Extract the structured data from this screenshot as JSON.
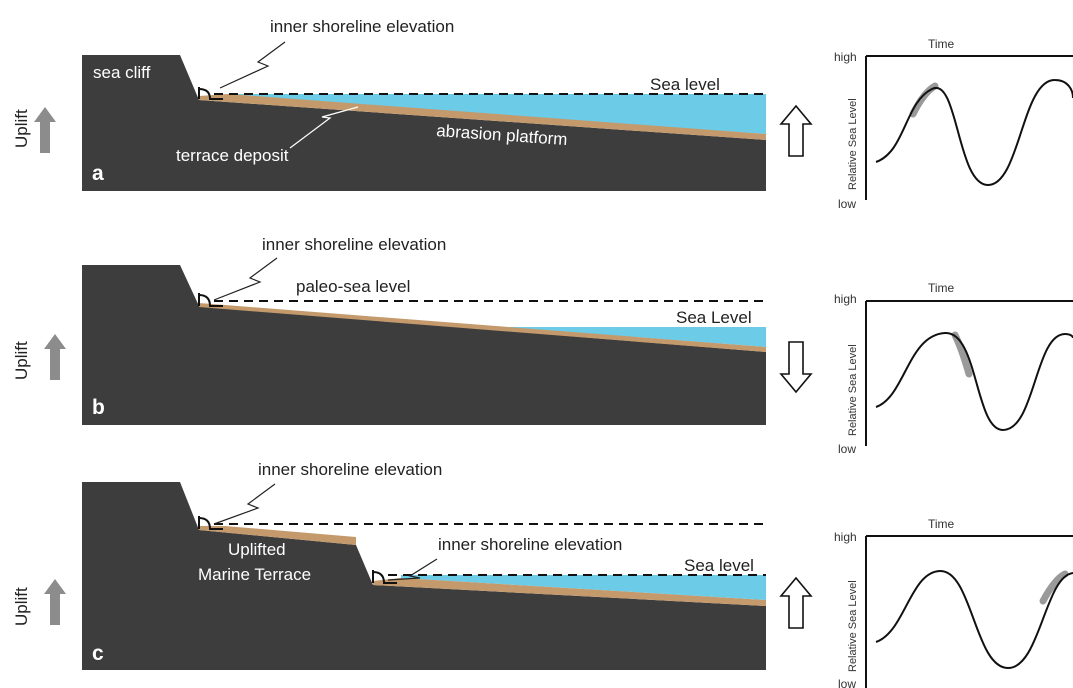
{
  "colors": {
    "rock": "#3d3d3d",
    "water": "#6ccbe6",
    "sediment": "#c49a6c",
    "arrow_gray": "#8c8c8c",
    "highlight": "#9a9a9a",
    "text": "#222222"
  },
  "panels": [
    {
      "letter": "a",
      "uplift_label": "Uplift",
      "sea_cliff_label": "sea cliff",
      "inner_shoreline_label": "inner shoreline elevation",
      "sea_level_label": "Sea level",
      "terrace_deposit_label": "terrace deposit",
      "platform_label": "abrasion platform",
      "sea_level_direction": "up",
      "graph": {
        "time_label": "Time",
        "y_label": "Relative Sea Level",
        "high_label": "high",
        "low_label": "low",
        "highlight_phase": "rising"
      }
    },
    {
      "letter": "b",
      "uplift_label": "Uplift",
      "inner_shoreline_label": "inner shoreline elevation",
      "paleo_sea_level_label": "paleo-sea level",
      "sea_level_label": "Sea Level",
      "sea_level_direction": "down",
      "graph": {
        "time_label": "Time",
        "y_label": "Relative Sea Level",
        "high_label": "high",
        "low_label": "low",
        "highlight_phase": "falling"
      }
    },
    {
      "letter": "c",
      "uplift_label": "Uplift",
      "inner_shoreline_label_1": "inner shoreline elevation",
      "inner_shoreline_label_2": "inner shoreline elevation",
      "terrace_label_line1": "Uplifted",
      "terrace_label_line2": "Marine Terrace",
      "sea_level_label": "Sea level",
      "sea_level_direction": "up",
      "graph": {
        "time_label": "Time",
        "y_label": "Relative Sea Level",
        "high_label": "high",
        "low_label": "low",
        "highlight_phase": "rising"
      }
    }
  ]
}
